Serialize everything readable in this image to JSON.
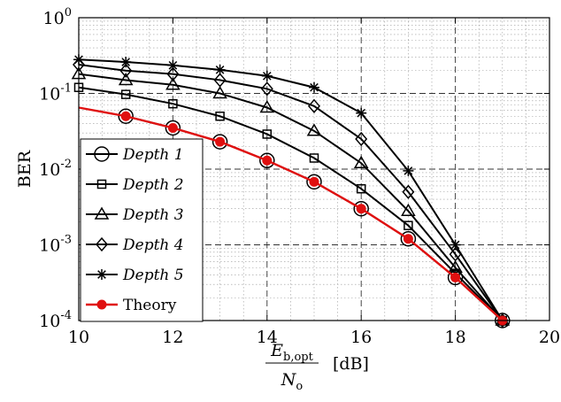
{
  "chart_data": {
    "type": "line",
    "title": "",
    "xlabel": {
      "numerator_main": "E",
      "numerator_sub": "b,opt",
      "denominator_main": "N",
      "denominator_sub": "o",
      "unit": "[dB]"
    },
    "ylabel": "BER",
    "xlim": [
      10,
      20
    ],
    "ylim": [
      0.0001,
      1
    ],
    "yscale": "log",
    "grid": true,
    "legend_position": "bottom-left",
    "x_ticks": [
      "10",
      "12",
      "14",
      "16",
      "18",
      "20"
    ],
    "y_ticks": [
      {
        "base": "10",
        "exp": "0"
      },
      {
        "base": "10",
        "exp": "-1"
      },
      {
        "base": "10",
        "exp": "-2"
      },
      {
        "base": "10",
        "exp": "-3"
      },
      {
        "base": "10",
        "exp": "-4"
      }
    ],
    "series": [
      {
        "name": "Depth 1",
        "marker": "circle",
        "color": "#000000",
        "x": [
          11,
          12,
          13,
          14,
          15,
          16,
          17,
          18,
          19
        ],
        "y": [
          0.05,
          0.035,
          0.023,
          0.013,
          0.0068,
          0.003,
          0.0012,
          0.00037,
          0.0001
        ]
      },
      {
        "name": "Depth 2",
        "marker": "square",
        "color": "#000000",
        "x": [
          10,
          11,
          12,
          13,
          14,
          15,
          16,
          17,
          18,
          19
        ],
        "y": [
          0.12,
          0.097,
          0.073,
          0.05,
          0.029,
          0.014,
          0.0055,
          0.0018,
          0.00042,
          0.0001
        ]
      },
      {
        "name": "Depth 3",
        "marker": "triangle",
        "color": "#000000",
        "x": [
          10,
          11,
          12,
          13,
          14,
          15,
          16,
          17,
          18,
          19
        ],
        "y": [
          0.18,
          0.15,
          0.13,
          0.1,
          0.065,
          0.032,
          0.012,
          0.0028,
          0.0005,
          0.0001
        ]
      },
      {
        "name": "Depth 4",
        "marker": "diamond",
        "color": "#000000",
        "x": [
          10,
          11,
          12,
          13,
          14,
          15,
          16,
          17,
          18,
          19
        ],
        "y": [
          0.24,
          0.2,
          0.18,
          0.15,
          0.115,
          0.068,
          0.025,
          0.005,
          0.00075,
          0.0001
        ]
      },
      {
        "name": "Depth 5",
        "marker": "asterisk",
        "color": "#000000",
        "x": [
          10,
          11,
          12,
          13,
          14,
          15,
          16,
          17,
          18,
          19
        ],
        "y": [
          0.28,
          0.26,
          0.235,
          0.205,
          0.17,
          0.12,
          0.055,
          0.0095,
          0.001,
          0.0001
        ]
      },
      {
        "name": "Theory",
        "marker": "dot",
        "color": "#e01010",
        "x": [
          10,
          11,
          12,
          13,
          14,
          15,
          16,
          17,
          18,
          19
        ],
        "y": [
          0.065,
          0.05,
          0.035,
          0.023,
          0.013,
          0.0068,
          0.003,
          0.0012,
          0.00037,
          0.0001
        ]
      }
    ]
  }
}
